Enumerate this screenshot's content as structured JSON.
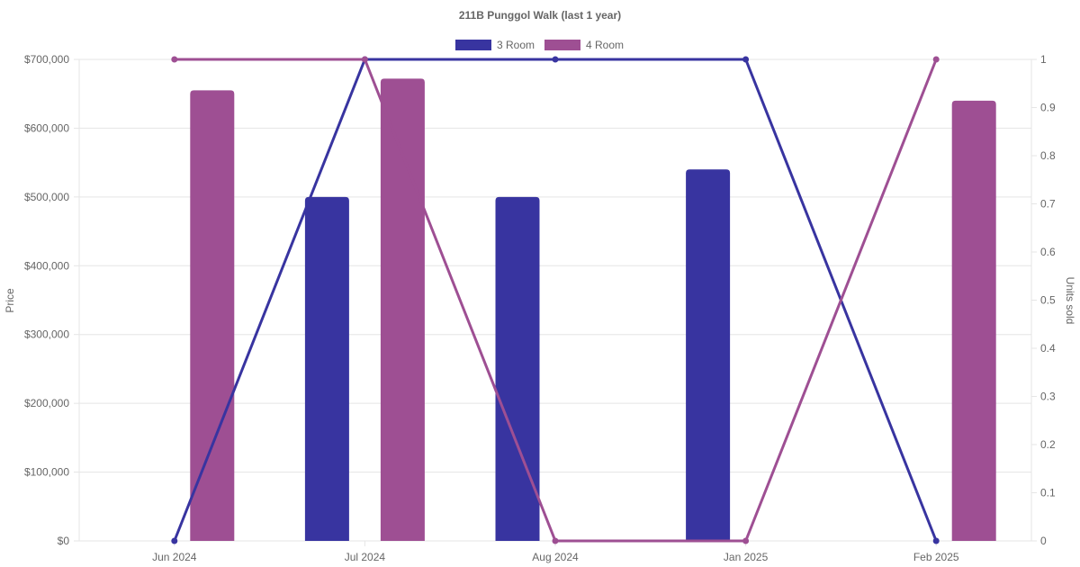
{
  "chart_data": {
    "type": "bar",
    "title": "211B Punggol Walk (last 1 year)",
    "categories": [
      "Jun 2024",
      "Jul 2024",
      "Aug 2024",
      "Jan 2025",
      "Feb 2025"
    ],
    "y_left": {
      "label": "Price",
      "range": [
        0,
        700000
      ],
      "ticks": [
        0,
        100000,
        200000,
        300000,
        400000,
        500000,
        600000,
        700000
      ],
      "tick_labels": [
        "$0",
        "$100,000",
        "$200,000",
        "$300,000",
        "$400,000",
        "$500,000",
        "$600,000",
        "$700,000"
      ]
    },
    "y_right": {
      "label": "Units sold",
      "range": [
        0,
        1
      ],
      "ticks": [
        0,
        0.1,
        0.2,
        0.3,
        0.4,
        0.5,
        0.6,
        0.7,
        0.8,
        0.9,
        1
      ],
      "tick_labels": [
        "0",
        "0.1",
        "0.2",
        "0.3",
        "0.4",
        "0.5",
        "0.6",
        "0.7",
        "0.8",
        "0.9",
        "1"
      ]
    },
    "series": [
      {
        "name": "3 Room",
        "color": "#3834a0",
        "price": [
          null,
          500000,
          500000,
          540000,
          null
        ],
        "units_sold": [
          0,
          1,
          1,
          1,
          0
        ]
      },
      {
        "name": "4 Room",
        "color": "#9e4f93",
        "price": [
          655000,
          672000,
          null,
          null,
          640000
        ],
        "units_sold": [
          1,
          1,
          0,
          0,
          1
        ]
      }
    ],
    "legend_position": "top",
    "grid": true
  }
}
